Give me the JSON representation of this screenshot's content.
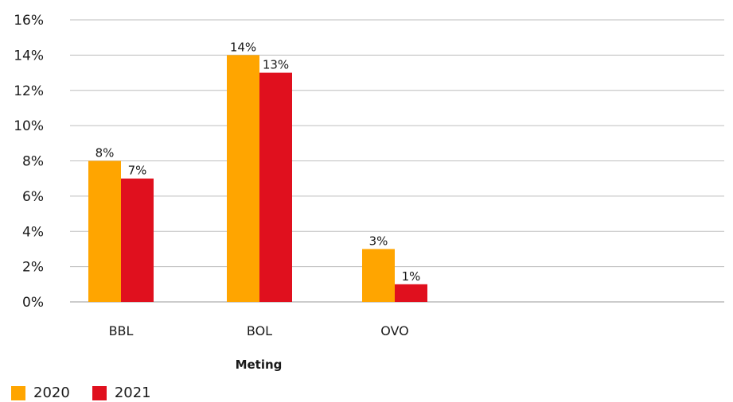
{
  "chart_data": {
    "type": "bar",
    "categories": [
      "BBL",
      "BOL",
      "OVO"
    ],
    "series": [
      {
        "name": "2020",
        "values": [
          8,
          14,
          3
        ],
        "labels": [
          "8%",
          "14%",
          "3%"
        ],
        "color": "#FFA500"
      },
      {
        "name": "2021",
        "values": [
          7,
          13,
          1
        ],
        "labels": [
          "7%",
          "13%",
          "1%"
        ],
        "color": "#E0101E"
      }
    ],
    "xlabel": "Meting",
    "ylabel": "",
    "ylim": [
      0,
      16
    ],
    "yticks": [
      0,
      2,
      4,
      6,
      8,
      10,
      12,
      14,
      16
    ],
    "ytick_labels": [
      "0%",
      "2%",
      "4%",
      "6%",
      "8%",
      "10%",
      "12%",
      "14%",
      "16%"
    ],
    "grid": true,
    "legend_position": "bottom-left"
  }
}
